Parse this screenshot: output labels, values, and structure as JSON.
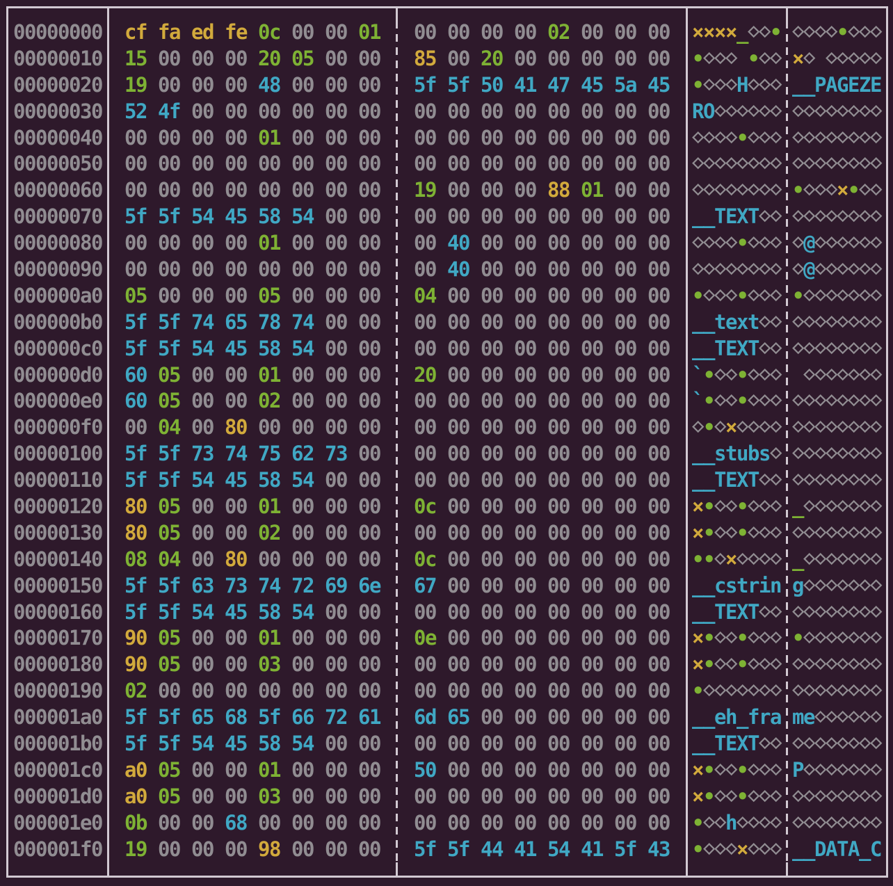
{
  "app": {
    "name": "terminal-hex-dump",
    "format": "hexyl-style hex viewer, 16 bytes per row in two groups of 8, with ASCII panel"
  },
  "colors": {
    "background": "#2e192b",
    "border": "#d2c9d2",
    "offset_and_null": "#918d92",
    "ascii_printable": "#40a8c4",
    "ascii_whitespace_and_control": "#7eb234",
    "non_ascii": "#d2aa3c"
  },
  "glyphs": {
    "null_byte": "⋄",
    "whitespace": "_",
    "control": "•",
    "non_ascii": "×"
  },
  "dump": {
    "rows": [
      {
        "offset": "00000000",
        "bytes": [
          "cf",
          "fa",
          "ed",
          "fe",
          "0c",
          "00",
          "00",
          "01",
          "00",
          "00",
          "00",
          "00",
          "02",
          "00",
          "00",
          "00"
        ]
      },
      {
        "offset": "00000010",
        "bytes": [
          "15",
          "00",
          "00",
          "00",
          "20",
          "05",
          "00",
          "00",
          "85",
          "00",
          "20",
          "00",
          "00",
          "00",
          "00",
          "00"
        ]
      },
      {
        "offset": "00000020",
        "bytes": [
          "19",
          "00",
          "00",
          "00",
          "48",
          "00",
          "00",
          "00",
          "5f",
          "5f",
          "50",
          "41",
          "47",
          "45",
          "5a",
          "45"
        ]
      },
      {
        "offset": "00000030",
        "bytes": [
          "52",
          "4f",
          "00",
          "00",
          "00",
          "00",
          "00",
          "00",
          "00",
          "00",
          "00",
          "00",
          "00",
          "00",
          "00",
          "00"
        ]
      },
      {
        "offset": "00000040",
        "bytes": [
          "00",
          "00",
          "00",
          "00",
          "01",
          "00",
          "00",
          "00",
          "00",
          "00",
          "00",
          "00",
          "00",
          "00",
          "00",
          "00"
        ]
      },
      {
        "offset": "00000050",
        "bytes": [
          "00",
          "00",
          "00",
          "00",
          "00",
          "00",
          "00",
          "00",
          "00",
          "00",
          "00",
          "00",
          "00",
          "00",
          "00",
          "00"
        ]
      },
      {
        "offset": "00000060",
        "bytes": [
          "00",
          "00",
          "00",
          "00",
          "00",
          "00",
          "00",
          "00",
          "19",
          "00",
          "00",
          "00",
          "88",
          "01",
          "00",
          "00"
        ]
      },
      {
        "offset": "00000070",
        "bytes": [
          "5f",
          "5f",
          "54",
          "45",
          "58",
          "54",
          "00",
          "00",
          "00",
          "00",
          "00",
          "00",
          "00",
          "00",
          "00",
          "00"
        ]
      },
      {
        "offset": "00000080",
        "bytes": [
          "00",
          "00",
          "00",
          "00",
          "01",
          "00",
          "00",
          "00",
          "00",
          "40",
          "00",
          "00",
          "00",
          "00",
          "00",
          "00"
        ]
      },
      {
        "offset": "00000090",
        "bytes": [
          "00",
          "00",
          "00",
          "00",
          "00",
          "00",
          "00",
          "00",
          "00",
          "40",
          "00",
          "00",
          "00",
          "00",
          "00",
          "00"
        ]
      },
      {
        "offset": "000000a0",
        "bytes": [
          "05",
          "00",
          "00",
          "00",
          "05",
          "00",
          "00",
          "00",
          "04",
          "00",
          "00",
          "00",
          "00",
          "00",
          "00",
          "00"
        ]
      },
      {
        "offset": "000000b0",
        "bytes": [
          "5f",
          "5f",
          "74",
          "65",
          "78",
          "74",
          "00",
          "00",
          "00",
          "00",
          "00",
          "00",
          "00",
          "00",
          "00",
          "00"
        ]
      },
      {
        "offset": "000000c0",
        "bytes": [
          "5f",
          "5f",
          "54",
          "45",
          "58",
          "54",
          "00",
          "00",
          "00",
          "00",
          "00",
          "00",
          "00",
          "00",
          "00",
          "00"
        ]
      },
      {
        "offset": "000000d0",
        "bytes": [
          "60",
          "05",
          "00",
          "00",
          "01",
          "00",
          "00",
          "00",
          "20",
          "00",
          "00",
          "00",
          "00",
          "00",
          "00",
          "00"
        ]
      },
      {
        "offset": "000000e0",
        "bytes": [
          "60",
          "05",
          "00",
          "00",
          "02",
          "00",
          "00",
          "00",
          "00",
          "00",
          "00",
          "00",
          "00",
          "00",
          "00",
          "00"
        ]
      },
      {
        "offset": "000000f0",
        "bytes": [
          "00",
          "04",
          "00",
          "80",
          "00",
          "00",
          "00",
          "00",
          "00",
          "00",
          "00",
          "00",
          "00",
          "00",
          "00",
          "00"
        ]
      },
      {
        "offset": "00000100",
        "bytes": [
          "5f",
          "5f",
          "73",
          "74",
          "75",
          "62",
          "73",
          "00",
          "00",
          "00",
          "00",
          "00",
          "00",
          "00",
          "00",
          "00"
        ]
      },
      {
        "offset": "00000110",
        "bytes": [
          "5f",
          "5f",
          "54",
          "45",
          "58",
          "54",
          "00",
          "00",
          "00",
          "00",
          "00",
          "00",
          "00",
          "00",
          "00",
          "00"
        ]
      },
      {
        "offset": "00000120",
        "bytes": [
          "80",
          "05",
          "00",
          "00",
          "01",
          "00",
          "00",
          "00",
          "0c",
          "00",
          "00",
          "00",
          "00",
          "00",
          "00",
          "00"
        ]
      },
      {
        "offset": "00000130",
        "bytes": [
          "80",
          "05",
          "00",
          "00",
          "02",
          "00",
          "00",
          "00",
          "00",
          "00",
          "00",
          "00",
          "00",
          "00",
          "00",
          "00"
        ]
      },
      {
        "offset": "00000140",
        "bytes": [
          "08",
          "04",
          "00",
          "80",
          "00",
          "00",
          "00",
          "00",
          "0c",
          "00",
          "00",
          "00",
          "00",
          "00",
          "00",
          "00"
        ]
      },
      {
        "offset": "00000150",
        "bytes": [
          "5f",
          "5f",
          "63",
          "73",
          "74",
          "72",
          "69",
          "6e",
          "67",
          "00",
          "00",
          "00",
          "00",
          "00",
          "00",
          "00"
        ]
      },
      {
        "offset": "00000160",
        "bytes": [
          "5f",
          "5f",
          "54",
          "45",
          "58",
          "54",
          "00",
          "00",
          "00",
          "00",
          "00",
          "00",
          "00",
          "00",
          "00",
          "00"
        ]
      },
      {
        "offset": "00000170",
        "bytes": [
          "90",
          "05",
          "00",
          "00",
          "01",
          "00",
          "00",
          "00",
          "0e",
          "00",
          "00",
          "00",
          "00",
          "00",
          "00",
          "00"
        ]
      },
      {
        "offset": "00000180",
        "bytes": [
          "90",
          "05",
          "00",
          "00",
          "03",
          "00",
          "00",
          "00",
          "00",
          "00",
          "00",
          "00",
          "00",
          "00",
          "00",
          "00"
        ]
      },
      {
        "offset": "00000190",
        "bytes": [
          "02",
          "00",
          "00",
          "00",
          "00",
          "00",
          "00",
          "00",
          "00",
          "00",
          "00",
          "00",
          "00",
          "00",
          "00",
          "00"
        ]
      },
      {
        "offset": "000001a0",
        "bytes": [
          "5f",
          "5f",
          "65",
          "68",
          "5f",
          "66",
          "72",
          "61",
          "6d",
          "65",
          "00",
          "00",
          "00",
          "00",
          "00",
          "00"
        ]
      },
      {
        "offset": "000001b0",
        "bytes": [
          "5f",
          "5f",
          "54",
          "45",
          "58",
          "54",
          "00",
          "00",
          "00",
          "00",
          "00",
          "00",
          "00",
          "00",
          "00",
          "00"
        ]
      },
      {
        "offset": "000001c0",
        "bytes": [
          "a0",
          "05",
          "00",
          "00",
          "01",
          "00",
          "00",
          "00",
          "50",
          "00",
          "00",
          "00",
          "00",
          "00",
          "00",
          "00"
        ]
      },
      {
        "offset": "000001d0",
        "bytes": [
          "a0",
          "05",
          "00",
          "00",
          "03",
          "00",
          "00",
          "00",
          "00",
          "00",
          "00",
          "00",
          "00",
          "00",
          "00",
          "00"
        ]
      },
      {
        "offset": "000001e0",
        "bytes": [
          "0b",
          "00",
          "00",
          "68",
          "00",
          "00",
          "00",
          "00",
          "00",
          "00",
          "00",
          "00",
          "00",
          "00",
          "00",
          "00"
        ]
      },
      {
        "offset": "000001f0",
        "bytes": [
          "19",
          "00",
          "00",
          "00",
          "98",
          "00",
          "00",
          "00",
          "5f",
          "5f",
          "44",
          "41",
          "54",
          "41",
          "5f",
          "43"
        ]
      }
    ]
  }
}
